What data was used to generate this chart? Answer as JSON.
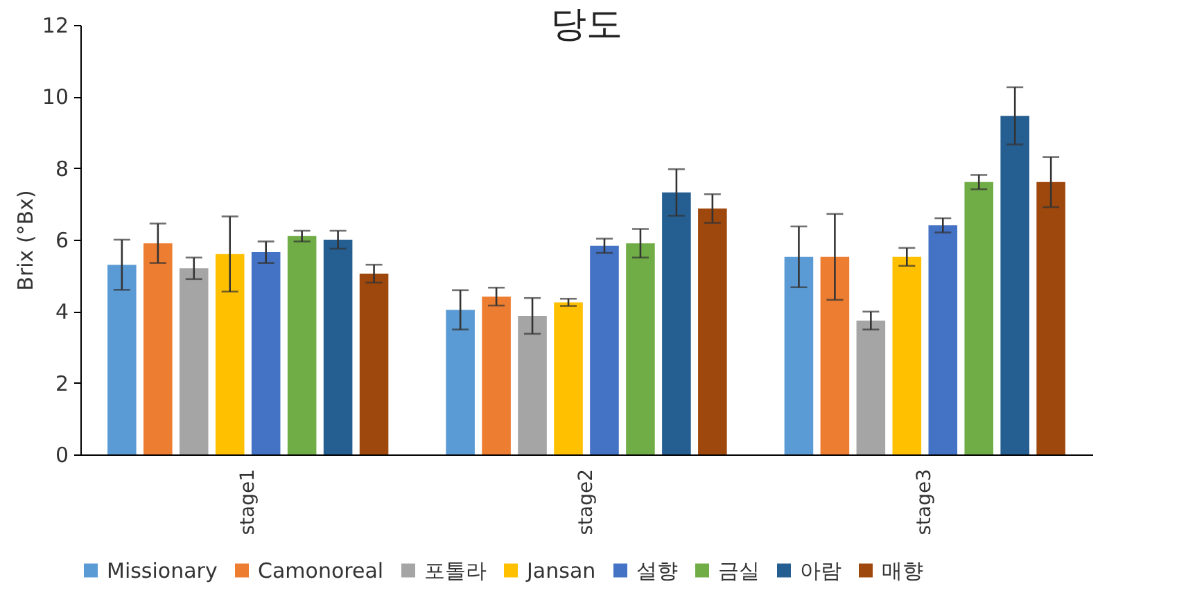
{
  "chart_data": {
    "type": "bar",
    "title": "당도",
    "ylabel": "Brix (°Bx)",
    "categories": [
      "stage1",
      "stage2",
      "stage3"
    ],
    "ylim": [
      0,
      12
    ],
    "yticks": [
      0,
      2,
      4,
      6,
      8,
      10,
      12
    ],
    "legend": "bottom",
    "series": [
      {
        "name": "Missionary",
        "color": "#5b9bd5",
        "values": [
          5.3,
          4.04,
          5.52
        ],
        "errors": [
          0.7,
          0.55,
          0.85
        ]
      },
      {
        "name": "Camonoreal",
        "color": "#ed7d31",
        "values": [
          5.9,
          4.41,
          5.52
        ],
        "errors": [
          0.55,
          0.25,
          1.2
        ]
      },
      {
        "name": "포톨라",
        "color": "#a5a5a5",
        "values": [
          5.2,
          3.87,
          3.74
        ],
        "errors": [
          0.3,
          0.5,
          0.25
        ]
      },
      {
        "name": "Jansan",
        "color": "#ffc000",
        "values": [
          5.6,
          4.25,
          5.52
        ],
        "errors": [
          1.05,
          0.1,
          0.25
        ]
      },
      {
        "name": "설향",
        "color": "#4472c4",
        "values": [
          5.65,
          5.83,
          6.4
        ],
        "errors": [
          0.3,
          0.2,
          0.2
        ]
      },
      {
        "name": "금실",
        "color": "#70ad47",
        "values": [
          6.1,
          5.9,
          7.61
        ],
        "errors": [
          0.15,
          0.4,
          0.2
        ]
      },
      {
        "name": "아람",
        "color": "#255e91",
        "values": [
          6.0,
          7.32,
          9.46
        ],
        "errors": [
          0.25,
          0.65,
          0.8
        ]
      },
      {
        "name": "매향",
        "color": "#9e480e",
        "values": [
          5.05,
          6.87,
          7.61
        ],
        "errors": [
          0.25,
          0.4,
          0.7
        ]
      }
    ]
  }
}
